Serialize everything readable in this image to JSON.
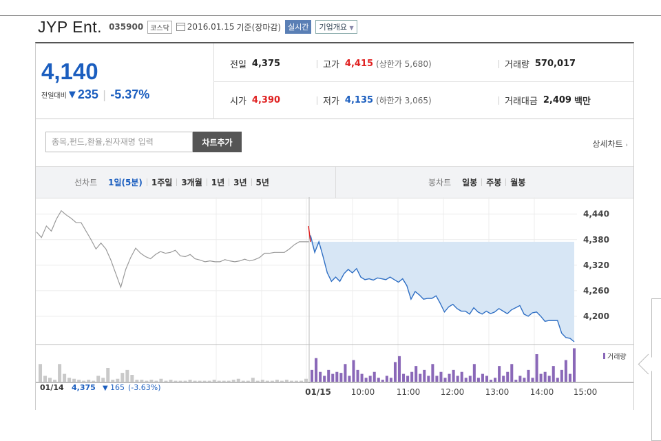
{
  "header": {
    "company": "JYP Ent.",
    "code": "035900",
    "market": "코스닥",
    "date": "2016.01.15",
    "basis": "기준(장마감)",
    "realtime": "실시간",
    "company_info": "기업개요"
  },
  "quote": {
    "price": "4,140",
    "change_label": "전일대비",
    "change_arrow": "▼",
    "change": "235",
    "change_pct": "-5.37%",
    "prev_close": {
      "label": "전일",
      "value": "4,375"
    },
    "high": {
      "label": "고가",
      "value": "4,415",
      "sub": "(상한가 5,680)"
    },
    "volume": {
      "label": "거래량",
      "value": "570,017"
    },
    "open": {
      "label": "시가",
      "value": "4,390"
    },
    "low": {
      "label": "저가",
      "value": "4,135",
      "sub": "(하한가 3,065)"
    },
    "trade_value": {
      "label": "거래대금",
      "value": "2,409",
      "unit": "백만"
    }
  },
  "toolbar": {
    "search_placeholder": "종목,펀드,환율,원자재명 입력",
    "add_chart": "차트추가",
    "detail_chart": "상세차트",
    "detail_icon": "chevron-right-icon"
  },
  "tabs": {
    "line_heading": "선차트",
    "line_tabs": [
      "1일(5분)",
      "1주일",
      "3개월",
      "1년",
      "3년",
      "5년"
    ],
    "candle_heading": "봉차트",
    "candle_tabs": [
      "일봉",
      "주봉",
      "월봉"
    ]
  },
  "colors": {
    "price_blue": "#1b5ebf",
    "up_red": "#e02222",
    "prev_line": "#999999",
    "today_line": "#2f6fc4",
    "fill": "#d7e6f5",
    "vol_prev": "#c9c9c9",
    "vol_today": "#8a68b8"
  },
  "chart_data": {
    "type": "line",
    "yticks": [
      "4,440",
      "4,380",
      "4,320",
      "4,260",
      "4,200"
    ],
    "ylim": [
      4140,
      4480
    ],
    "xticks": [
      "01/15",
      "10:00",
      "11:00",
      "12:00",
      "13:00",
      "14:00",
      "15:00"
    ],
    "prev_summary": {
      "date": "01/14",
      "price": "4,375",
      "arrow": "▼",
      "change": "165",
      "pct": "(-3.63%)"
    },
    "volume_label": "거래량",
    "prev_day_prices": [
      4398,
      4385,
      4412,
      4400,
      4428,
      4448,
      4438,
      4430,
      4420,
      4420,
      4400,
      4380,
      4358,
      4372,
      4358,
      4332,
      4300,
      4268,
      4310,
      4338,
      4360,
      4348,
      4340,
      4335,
      4345,
      4352,
      4348,
      4350,
      4355,
      4342,
      4340,
      4345,
      4335,
      4332,
      4328,
      4330,
      4328,
      4328,
      4333,
      4330,
      4328,
      4330,
      4334,
      4330,
      4333,
      4338,
      4348,
      4348,
      4350,
      4350,
      4350,
      4358,
      4368,
      4375,
      4375,
      4375
    ],
    "today_prices": [
      4390,
      4350,
      4375,
      4340,
      4302,
      4282,
      4292,
      4282,
      4300,
      4310,
      4302,
      4312,
      4292,
      4286,
      4288,
      4285,
      4290,
      4288,
      4286,
      4292,
      4286,
      4280,
      4288,
      4272,
      4240,
      4258,
      4250,
      4240,
      4242,
      4242,
      4248,
      4230,
      4210,
      4222,
      4228,
      4218,
      4212,
      4212,
      4205,
      4220,
      4210,
      4205,
      4212,
      4206,
      4210,
      4218,
      4212,
      4206,
      4215,
      4220,
      4225,
      4205,
      4200,
      4208,
      4210,
      4200,
      4188,
      4190,
      4190,
      4190,
      4160,
      4150,
      4148,
      4140
    ],
    "prev_day_volume": [
      18,
      6,
      4,
      2,
      18,
      8,
      4,
      3,
      2,
      1,
      2,
      1,
      6,
      4,
      14,
      2,
      3,
      9,
      12,
      7,
      2,
      2,
      1,
      2,
      1,
      3,
      1,
      2,
      1,
      1,
      1,
      2,
      1,
      1,
      1,
      1,
      2,
      1,
      1,
      1,
      2,
      3,
      1,
      1,
      4,
      1,
      2,
      1,
      1,
      2,
      1,
      2,
      1,
      1,
      1,
      3
    ],
    "today_volume": [
      12,
      24,
      10,
      6,
      12,
      8,
      10,
      9,
      18,
      6,
      22,
      12,
      8,
      4,
      6,
      10,
      4,
      2,
      6,
      4,
      20,
      26,
      8,
      6,
      10,
      16,
      8,
      12,
      6,
      18,
      6,
      10,
      4,
      8,
      12,
      6,
      10,
      4,
      6,
      18,
      4,
      8,
      6,
      2,
      4,
      16,
      6,
      10,
      18,
      2,
      6,
      4,
      12,
      4,
      28,
      8,
      10,
      6,
      16,
      4,
      12,
      22,
      8,
      34
    ]
  }
}
